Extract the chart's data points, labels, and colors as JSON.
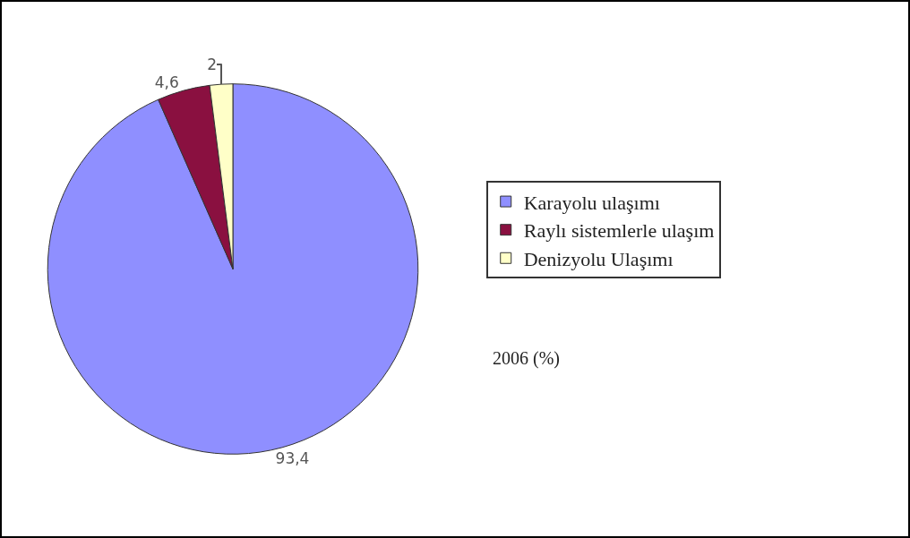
{
  "chart_data": {
    "type": "pie",
    "categories": [
      "Karayolu ulaşımı",
      "Raylı sistemlerle ulaşım",
      "Denizyolu Ulaşımı"
    ],
    "values": [
      93.4,
      4.6,
      2
    ],
    "colors": [
      "#8f8fff",
      "#8a1040",
      "#ffffc8"
    ],
    "value_labels": [
      "93,4",
      "4,6",
      "2"
    ],
    "legend": "right",
    "annotations": [
      "2006 (%)"
    ]
  }
}
